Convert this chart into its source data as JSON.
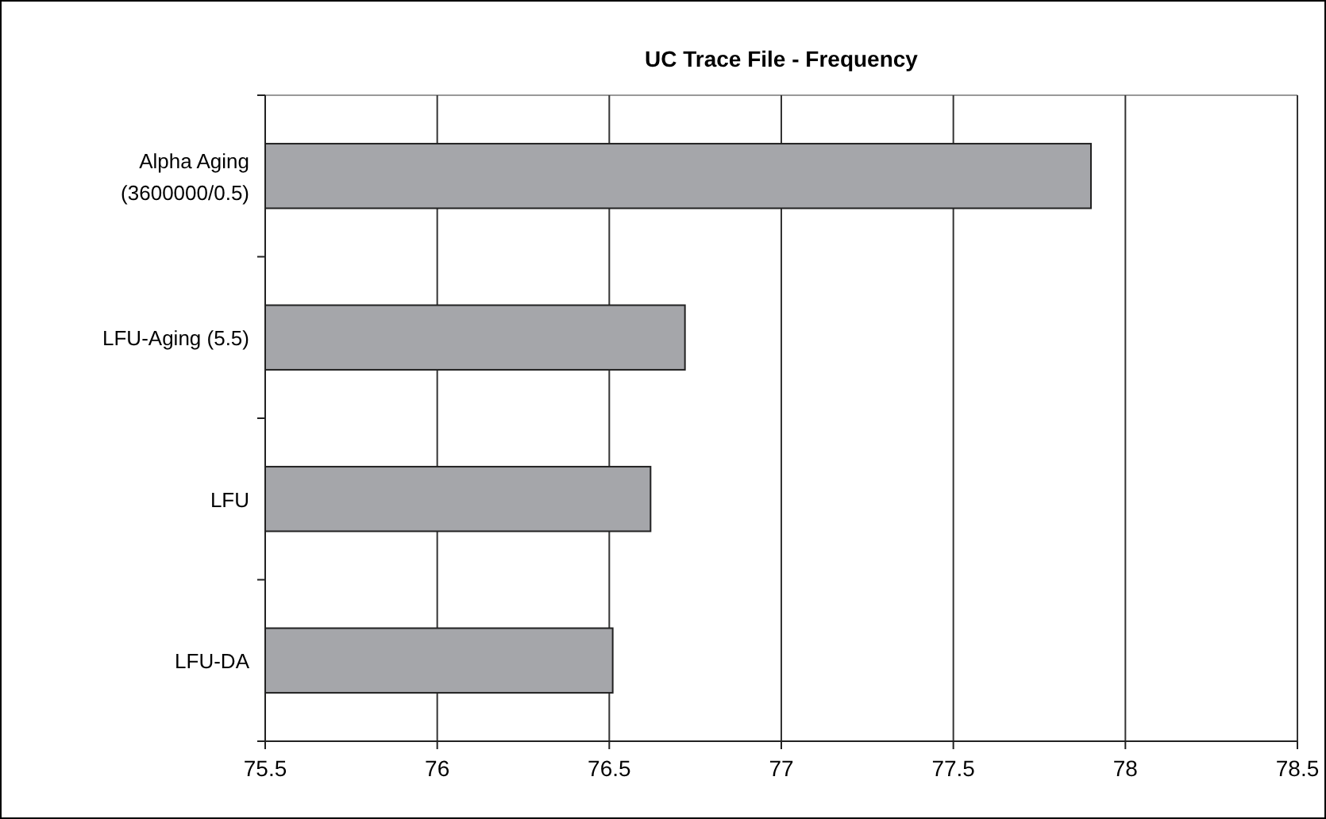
{
  "chart_data": {
    "type": "bar",
    "orientation": "horizontal",
    "title": "UC Trace File - Frequency",
    "categories": [
      "Alpha Aging (3600000/0.5)",
      "LFU-Aging (5.5)",
      "LFU",
      "LFU-DA"
    ],
    "values": [
      77.9,
      76.72,
      76.62,
      76.51
    ],
    "color": "#a5a6aa",
    "xlim": [
      75.5,
      78.5
    ],
    "xticks": [
      75.5,
      76,
      76.5,
      77,
      77.5,
      78,
      78.5
    ],
    "grid": "x"
  }
}
